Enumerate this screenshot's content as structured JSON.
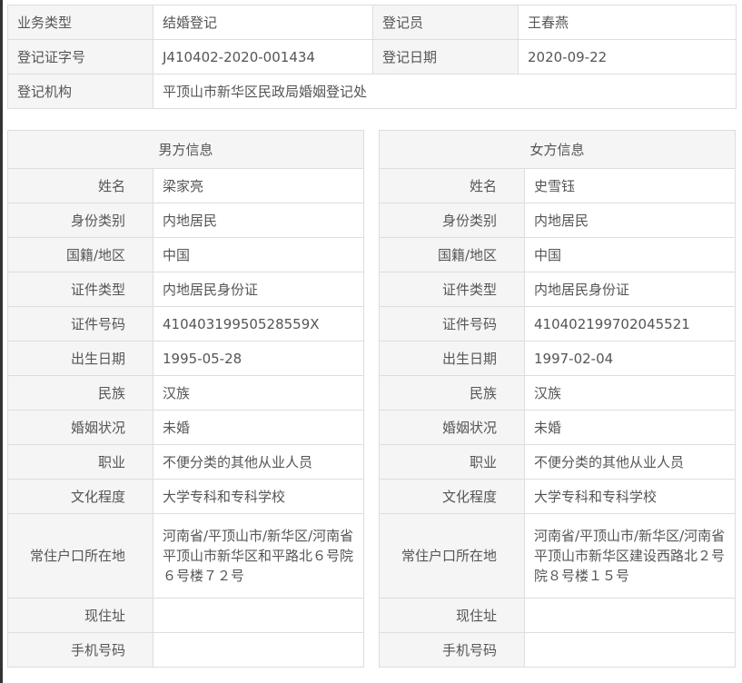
{
  "record": {
    "business_type_label": "业务类型",
    "business_type": "结婚登记",
    "registrar_label": "登记员",
    "registrar": "王春燕",
    "cert_no_label": "登记证字号",
    "cert_no": "J410402-2020-001434",
    "reg_date_label": "登记日期",
    "reg_date": "2020-09-22",
    "office_label": "登记机构",
    "office": "平顶山市新华区民政局婚姻登记处"
  },
  "male": {
    "title": "男方信息",
    "rows": [
      {
        "label": "姓名",
        "value": "梁家亮"
      },
      {
        "label": "身份类别",
        "value": "内地居民"
      },
      {
        "label": "国籍/地区",
        "value": "中国"
      },
      {
        "label": "证件类型",
        "value": "内地居民身份证"
      },
      {
        "label": "证件号码",
        "value": "41040319950528559X"
      },
      {
        "label": "出生日期",
        "value": "1995-05-28"
      },
      {
        "label": "民族",
        "value": "汉族"
      },
      {
        "label": "婚姻状况",
        "value": "未婚"
      },
      {
        "label": "职业",
        "value": "不便分类的其他从业人员"
      },
      {
        "label": "文化程度",
        "value": "大学专科和专科学校"
      },
      {
        "label": "常住户口所在地",
        "value": "河南省/平顶山市/新华区/河南省平顶山市新华区和平路北６号院６号楼７２号"
      },
      {
        "label": "现住址",
        "value": ""
      },
      {
        "label": "手机号码",
        "value": ""
      }
    ]
  },
  "female": {
    "title": "女方信息",
    "rows": [
      {
        "label": "姓名",
        "value": "史雪钰"
      },
      {
        "label": "身份类别",
        "value": "内地居民"
      },
      {
        "label": "国籍/地区",
        "value": "中国"
      },
      {
        "label": "证件类型",
        "value": "内地居民身份证"
      },
      {
        "label": "证件号码",
        "value": "410402199702045521"
      },
      {
        "label": "出生日期",
        "value": "1997-02-04"
      },
      {
        "label": "民族",
        "value": "汉族"
      },
      {
        "label": "婚姻状况",
        "value": "未婚"
      },
      {
        "label": "职业",
        "value": "不便分类的其他从业人员"
      },
      {
        "label": "文化程度",
        "value": "大学专科和专科学校"
      },
      {
        "label": "常住户口所在地",
        "value": "河南省/平顶山市/新华区/河南省平顶山市新华区建设西路北２号院８号楼１５号"
      },
      {
        "label": "现住址",
        "value": ""
      },
      {
        "label": "手机号码",
        "value": ""
      }
    ]
  }
}
